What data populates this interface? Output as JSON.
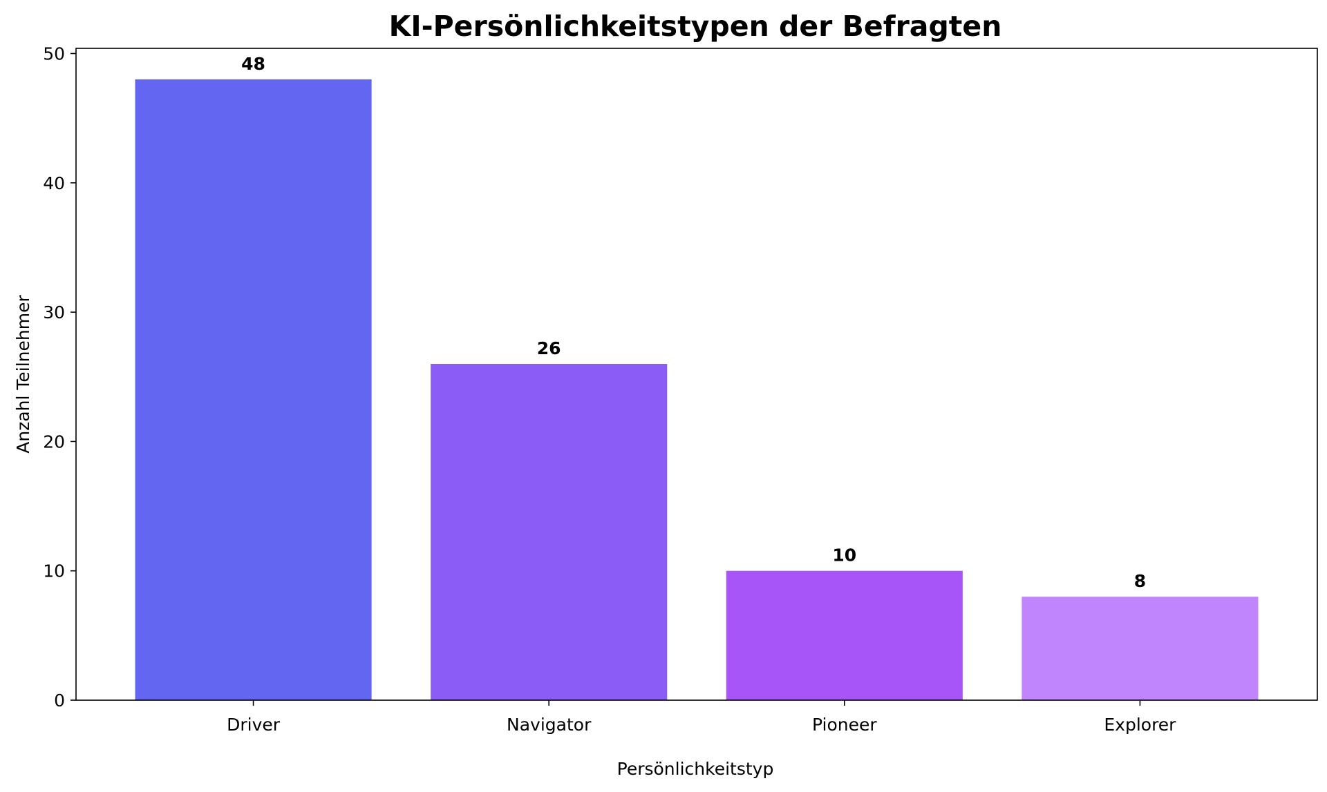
{
  "chart_data": {
    "type": "bar",
    "title": "KI-Persönlichkeitstypen der Befragten",
    "xlabel": "Persönlichkeitstyp",
    "ylabel": "Anzahl Teilnehmer",
    "categories": [
      "Driver",
      "Navigator",
      "Pioneer",
      "Explorer"
    ],
    "values": [
      48,
      26,
      10,
      8
    ],
    "colors": [
      "#6366f1",
      "#8b5cf6",
      "#a855f7",
      "#c084fc"
    ],
    "ylim": [
      0,
      50.4
    ],
    "yticks": [
      0,
      10,
      20,
      30,
      40,
      50
    ],
    "grid": false,
    "legend": "none",
    "data_labels": true
  }
}
